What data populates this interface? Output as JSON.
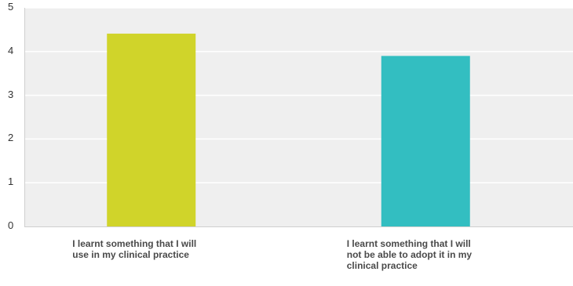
{
  "chart_data": {
    "type": "bar",
    "categories": [
      "I learnt something that I will use in my clinical practice",
      "I learnt something that I will not be able to adopt it in my clinical practice"
    ],
    "category_lines": [
      [
        "I learnt something that I will",
        "use in my clinical practice"
      ],
      [
        "I learnt something that I will",
        "not be able to adopt it in my",
        "clinical practice"
      ]
    ],
    "values": [
      4.41,
      3.9
    ],
    "colors": [
      "#d0d42a",
      "#33bec1"
    ],
    "yticks": [
      "0",
      "1",
      "2",
      "3",
      "4",
      "5"
    ],
    "ylim": [
      0,
      5
    ],
    "grid": true,
    "plot_background": "#efefef",
    "grid_color": "#ffffff"
  }
}
